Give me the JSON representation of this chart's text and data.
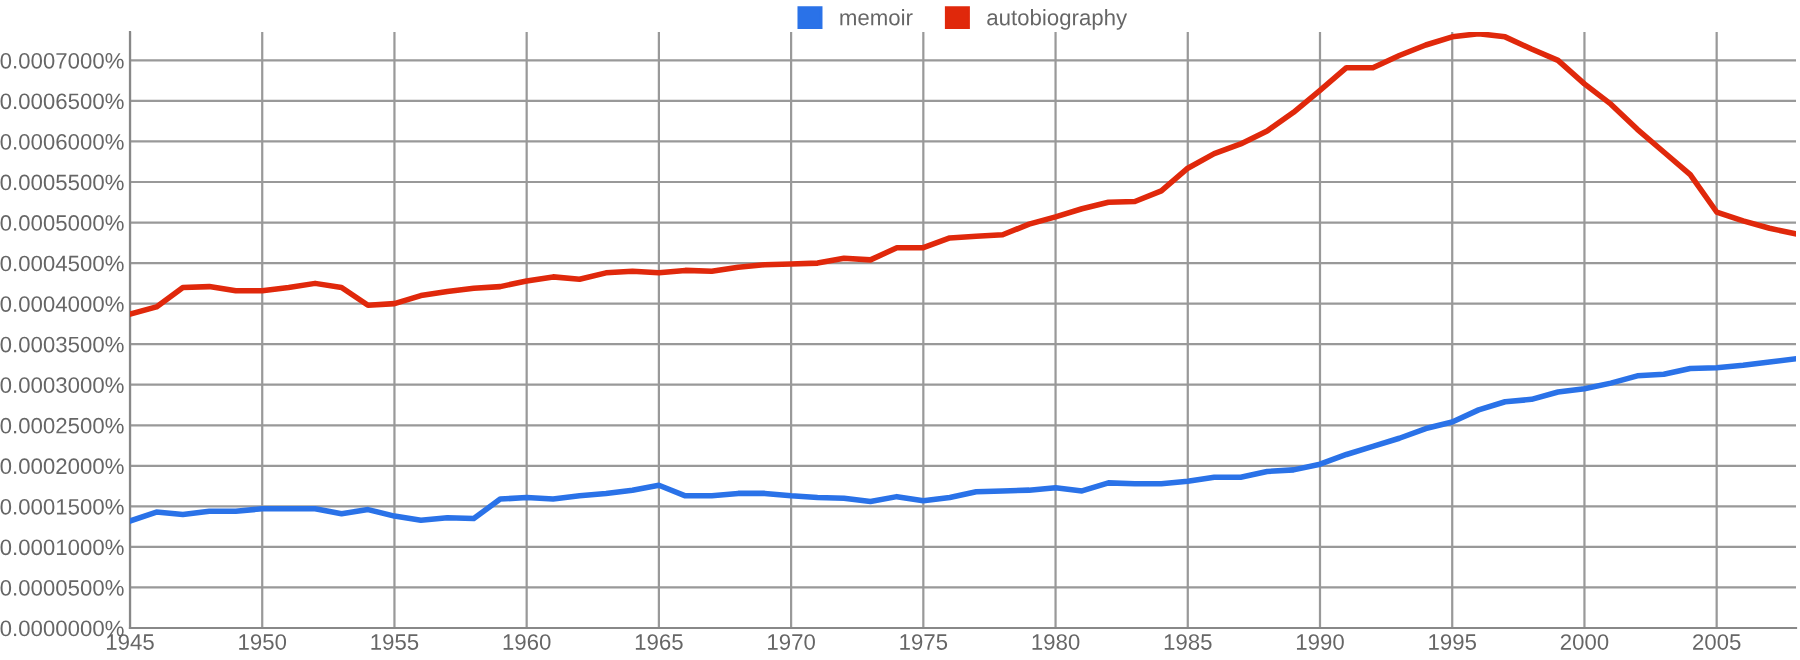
{
  "chart_data": {
    "type": "line",
    "x": [
      1945,
      1946,
      1947,
      1948,
      1949,
      1950,
      1951,
      1952,
      1953,
      1954,
      1955,
      1956,
      1957,
      1958,
      1959,
      1960,
      1961,
      1962,
      1963,
      1964,
      1965,
      1966,
      1967,
      1968,
      1969,
      1970,
      1971,
      1972,
      1973,
      1974,
      1975,
      1976,
      1977,
      1978,
      1979,
      1980,
      1981,
      1982,
      1983,
      1984,
      1985,
      1986,
      1987,
      1988,
      1989,
      1990,
      1991,
      1992,
      1993,
      1994,
      1995,
      1996,
      1997,
      1998,
      1999,
      2000,
      2001,
      2002,
      2003,
      2004,
      2005,
      2006,
      2007,
      2008
    ],
    "series": [
      {
        "name": "memoir",
        "color": "#2a72e8",
        "values": [
          0.000132,
          0.000143,
          0.00014,
          0.000144,
          0.000144,
          0.000147,
          0.000147,
          0.000147,
          0.000141,
          0.000146,
          0.000138,
          0.000133,
          0.000136,
          0.000135,
          0.000159,
          0.000161,
          0.000159,
          0.000163,
          0.000166,
          0.00017,
          0.000176,
          0.000163,
          0.000163,
          0.000166,
          0.000166,
          0.000163,
          0.000161,
          0.00016,
          0.000156,
          0.000162,
          0.000157,
          0.000161,
          0.000168,
          0.000169,
          0.00017,
          0.000173,
          0.000169,
          0.000179,
          0.000178,
          0.000178,
          0.000181,
          0.000186,
          0.000186,
          0.000193,
          0.000195,
          0.000202,
          0.000214,
          0.000224,
          0.000234,
          0.000246,
          0.000254,
          0.000269,
          0.000279,
          0.000282,
          0.000291,
          0.000295,
          0.000302,
          0.000311,
          0.000313,
          0.00032,
          0.000321,
          0.000324,
          0.000328,
          0.000332
        ]
      },
      {
        "name": "autobiography",
        "color": "#e0280b",
        "values": [
          0.000387,
          0.000396,
          0.00042,
          0.000421,
          0.000416,
          0.000416,
          0.00042,
          0.000425,
          0.00042,
          0.000398,
          0.0004,
          0.00041,
          0.000415,
          0.000419,
          0.000421,
          0.000428,
          0.000433,
          0.00043,
          0.000438,
          0.00044,
          0.000438,
          0.000441,
          0.00044,
          0.000445,
          0.000448,
          0.000449,
          0.00045,
          0.000456,
          0.000454,
          0.000469,
          0.000469,
          0.000481,
          0.000483,
          0.000485,
          0.000498,
          0.000507,
          0.000517,
          0.000525,
          0.000526,
          0.000539,
          0.000567,
          0.000585,
          0.000597,
          0.000613,
          0.000636,
          0.000663,
          0.000691,
          0.000691,
          0.000706,
          0.000719,
          0.000729,
          0.000733,
          0.000729,
          0.000714,
          0.0007,
          0.000671,
          0.000646,
          0.000615,
          0.000587,
          0.000559,
          0.000513,
          0.000502,
          0.000493,
          0.000486
        ]
      }
    ],
    "xlim": [
      1945,
      2008
    ],
    "xticks": [
      1945,
      1950,
      1955,
      1960,
      1965,
      1970,
      1975,
      1980,
      1985,
      1990,
      1995,
      2000,
      2005
    ],
    "ylim": [
      0,
      0.000735
    ],
    "yticks": [
      {
        "value": 0,
        "label": "0.0000000%"
      },
      {
        "value": 5e-05,
        "label": "0.0000500%"
      },
      {
        "value": 0.0001,
        "label": "0.0001000%"
      },
      {
        "value": 0.00015,
        "label": "0.0001500%"
      },
      {
        "value": 0.0002,
        "label": "0.0002000%"
      },
      {
        "value": 0.00025,
        "label": "0.0002500%"
      },
      {
        "value": 0.0003,
        "label": "0.0003000%"
      },
      {
        "value": 0.00035,
        "label": "0.0003500%"
      },
      {
        "value": 0.0004,
        "label": "0.0004000%"
      },
      {
        "value": 0.00045,
        "label": "0.0004500%"
      },
      {
        "value": 0.0005,
        "label": "0.0005000%"
      },
      {
        "value": 0.00055,
        "label": "0.0005500%"
      },
      {
        "value": 0.0006,
        "label": "0.0006000%"
      },
      {
        "value": 0.00065,
        "label": "0.0006500%"
      },
      {
        "value": 0.0007,
        "label": "0.0007000%"
      }
    ],
    "grid": true,
    "legend": "top",
    "marker": "none",
    "line_style": "solid"
  }
}
